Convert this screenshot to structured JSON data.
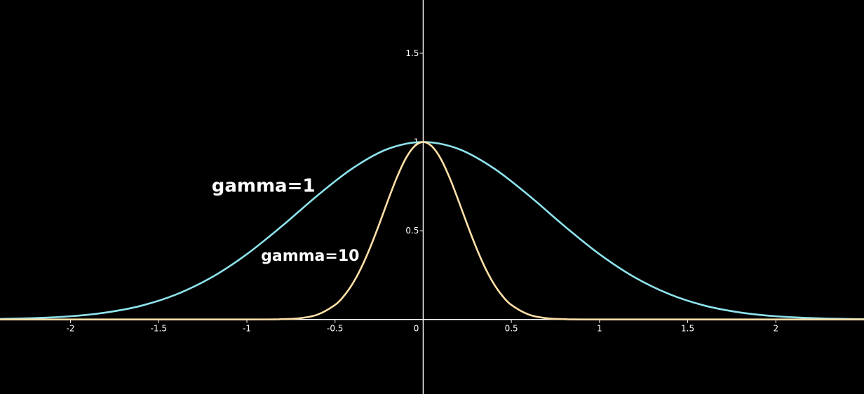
{
  "chart_data": {
    "type": "line",
    "title": "",
    "xlabel": "",
    "ylabel": "",
    "xlim": [
      -2.4,
      2.5
    ],
    "ylim": [
      -0.42,
      1.8
    ],
    "grid": false,
    "x_ticks": [
      -2,
      -1.5,
      -1,
      -0.5,
      0,
      0.5,
      1,
      1.5,
      2
    ],
    "x_tick_labels": [
      "-2",
      "-1.5",
      "-1",
      "-0.5",
      "0",
      "0.5",
      "1",
      "1.5",
      "2"
    ],
    "y_ticks": [
      0.5,
      1,
      1.5
    ],
    "y_tick_labels": [
      "0.5",
      "1",
      "1.5"
    ],
    "series": [
      {
        "name": "gamma=1",
        "color": "#8ee3ec",
        "x": [
          -2.4,
          -2.2,
          -2.0,
          -1.8,
          -1.6,
          -1.4,
          -1.2,
          -1.0,
          -0.8,
          -0.6,
          -0.4,
          -0.2,
          0.0,
          0.2,
          0.4,
          0.6,
          0.8,
          1.0,
          1.2,
          1.4,
          1.6,
          1.8,
          2.0,
          2.2,
          2.4,
          2.5
        ],
        "y": [
          0.003,
          0.008,
          0.018,
          0.039,
          0.077,
          0.141,
          0.237,
          0.368,
          0.527,
          0.698,
          0.852,
          0.961,
          1.0,
          0.961,
          0.852,
          0.698,
          0.527,
          0.368,
          0.237,
          0.141,
          0.077,
          0.039,
          0.018,
          0.008,
          0.003,
          0.002
        ]
      },
      {
        "name": "gamma=10",
        "color": "#ffe0a8",
        "x": [
          -2.4,
          -1.0,
          -0.8,
          -0.7,
          -0.6,
          -0.5,
          -0.45,
          -0.4,
          -0.35,
          -0.3,
          -0.25,
          -0.2,
          -0.15,
          -0.1,
          -0.05,
          0.0,
          0.05,
          0.1,
          0.15,
          0.2,
          0.25,
          0.3,
          0.35,
          0.4,
          0.45,
          0.5,
          0.6,
          0.7,
          0.8,
          1.0,
          2.5
        ],
        "y": [
          0.0,
          0.0,
          0.002,
          0.007,
          0.027,
          0.082,
          0.132,
          0.202,
          0.294,
          0.407,
          0.535,
          0.67,
          0.798,
          0.905,
          0.975,
          1.0,
          0.975,
          0.905,
          0.798,
          0.67,
          0.535,
          0.407,
          0.294,
          0.202,
          0.132,
          0.082,
          0.027,
          0.007,
          0.002,
          0.0,
          0.0
        ]
      }
    ],
    "annotations": [
      {
        "text": "gamma=1",
        "x": -1.2,
        "y": 0.72,
        "size": 26
      },
      {
        "text": "gamma=10",
        "x": -0.92,
        "y": 0.33,
        "size": 22
      }
    ]
  }
}
